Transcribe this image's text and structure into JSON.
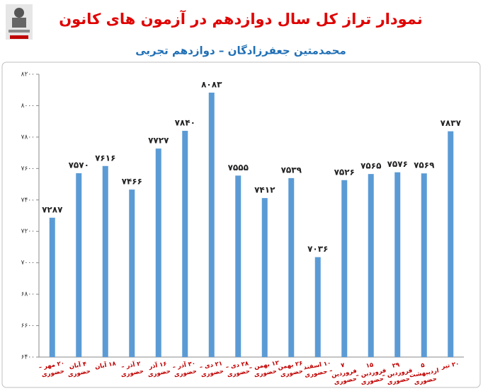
{
  "chart_data": {
    "type": "bar",
    "title": "نمودار تراز کل سال دوازدهم در آزمون های کانون",
    "subtitle": "محمدمتین جعفرزادگان – دوازدهم تجربی",
    "categories": [
      "۲۰ مهر – حضوری",
      "۴ آبان حضوری",
      "۱۸ آبان",
      "۲ آذر – حضوری",
      "۱۶ آذر حضوری",
      "۳۰ آذر – حضوری",
      "۲۱ دی – حضوری",
      "۲۸ دی – حضوری",
      "۱۲ بهمن – حضوری",
      "۲۶ بهمن حضوری",
      "۱۰ اسفند – حضوری",
      "۷ فروردین حضوری",
      "۱۵ فروردین – حضوری",
      "۲۹ فروردین – حضوری",
      "۵ اردیبهشت حضوری",
      "۲۰ تیر"
    ],
    "values": [
      7287,
      7570,
      7616,
      7466,
      7727,
      7840,
      8083,
      7555,
      7412,
      7539,
      7036,
      7526,
      7565,
      7576,
      7569,
      7837
    ],
    "value_labels": [
      "۷۲۸۷",
      "۷۵۷۰",
      "۷۶۱۶",
      "۷۴۶۶",
      "۷۷۲۷",
      "۷۸۴۰",
      "۸۰۸۳",
      "۷۵۵۵",
      "۷۴۱۲",
      "۷۵۳۹",
      "۷۰۳۶",
      "۷۵۲۶",
      "۷۵۶۵",
      "۷۵۷۶",
      "۷۵۶۹",
      "۷۸۳۷"
    ],
    "color": "#5b9bd5",
    "ylim": [
      6400,
      8200
    ],
    "yticks": [
      {
        "value": 6400,
        "label": "۶۴۰۰"
      },
      {
        "value": 6600,
        "label": "۶۶۰۰"
      },
      {
        "value": 6800,
        "label": "۶۸۰۰"
      },
      {
        "value": 7000,
        "label": "۷۰۰۰"
      },
      {
        "value": 7200,
        "label": "۷۲۰۰"
      },
      {
        "value": 7400,
        "label": "۷۴۰۰"
      },
      {
        "value": 7600,
        "label": "۷۶۰۰"
      },
      {
        "value": 7800,
        "label": "۷۸۰۰"
      },
      {
        "value": 8000,
        "label": "۸۰۰۰"
      },
      {
        "value": 8200,
        "label": "۸۲۰۰"
      }
    ],
    "grid": false
  }
}
